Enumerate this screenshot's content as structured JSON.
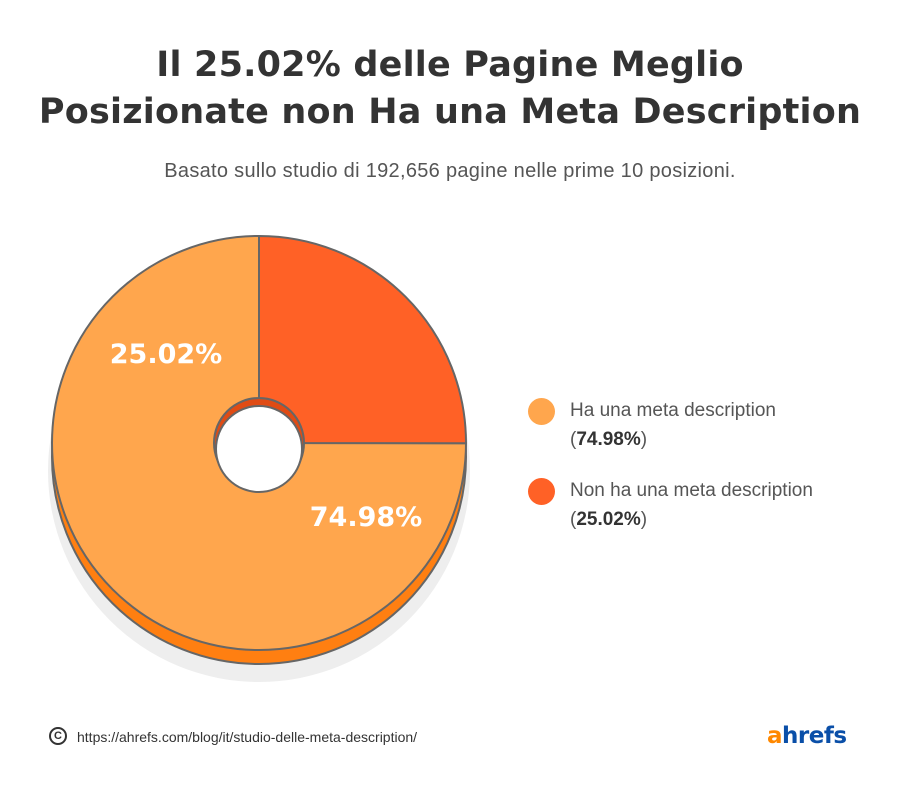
{
  "title_lines": [
    "Il 25.02% delle Pagine Meglio",
    "Posizionate non Ha una Meta Description"
  ],
  "subtitle": "Basato sullo studio di 192,656 pagine nelle prime 10 posizioni.",
  "chart_data": {
    "type": "pie",
    "style": "donut",
    "slices": [
      {
        "label": "Ha una meta description",
        "value": 74.98,
        "data_label": "74.98%",
        "color": "#ffa64d"
      },
      {
        "label": "Non ha una meta description",
        "value": 25.02,
        "data_label": "25.02%",
        "color": "#ff6126"
      }
    ]
  },
  "legend": [
    {
      "label": "Ha una meta description",
      "pct": "74.98%",
      "color": "#ffa64d"
    },
    {
      "label": "Non ha una meta description",
      "pct": "25.02%",
      "color": "#ff6126"
    }
  ],
  "footer": {
    "copyright_icon": "copyright-icon",
    "symbol": "C",
    "url": "https://ahrefs.com/blog/it/studio-delle-meta-description/"
  },
  "logo": {
    "first": "a",
    "rest": "hrefs"
  }
}
